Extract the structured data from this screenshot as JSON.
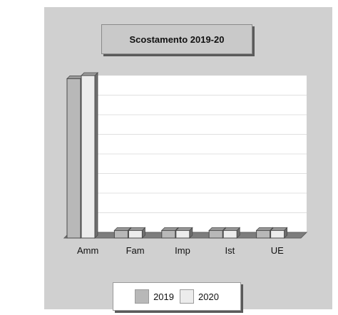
{
  "chart_data": {
    "type": "bar",
    "title": "Scostamento 2019-20",
    "categories": [
      "Amm",
      "Fam",
      "Imp",
      "Ist",
      "UE"
    ],
    "series": [
      {
        "name": "2019",
        "values": [
          98,
          1.2,
          1.2,
          1.2,
          1.2
        ],
        "color": "#b8b8b8"
      },
      {
        "name": "2020",
        "values": [
          100,
          1.2,
          1.2,
          1.2,
          1.2
        ],
        "color": "#ececec"
      }
    ],
    "ylim": [
      0,
      100
    ],
    "grid": true,
    "legend": "bottom"
  }
}
